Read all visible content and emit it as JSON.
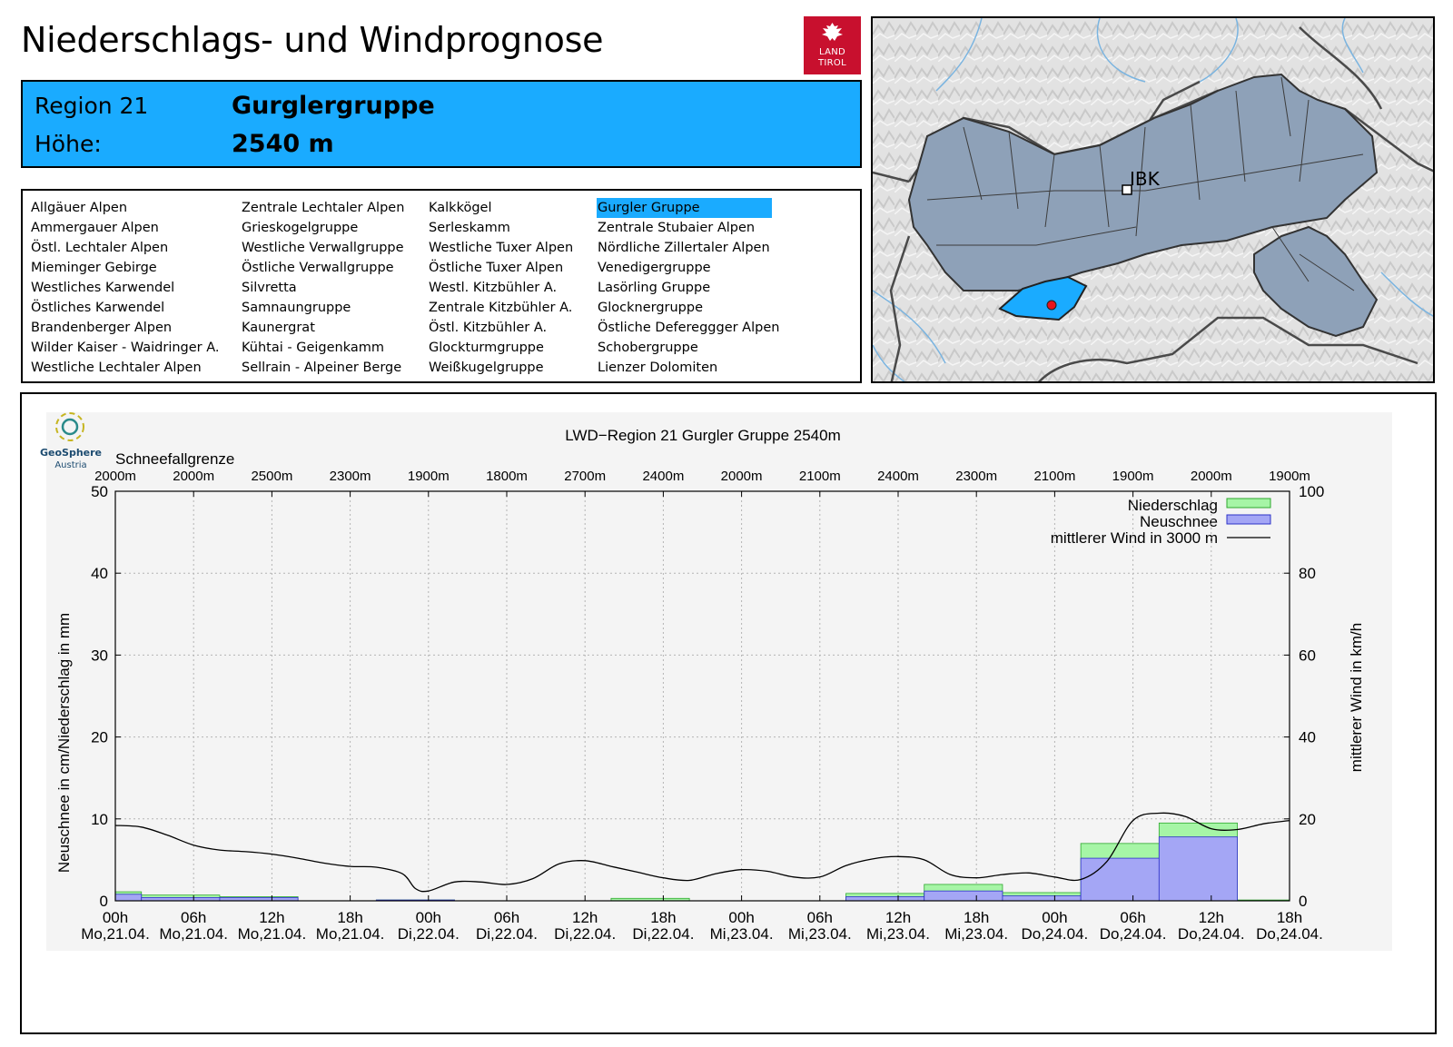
{
  "header": {
    "title": "Niederschlags- und Windprognose"
  },
  "logo": {
    "line1": "LAND",
    "line2": "TIROL",
    "color": "#c8102e"
  },
  "region": {
    "region_label": "Region 21",
    "region_name": "Gurglergruppe",
    "height_label": "Höhe:",
    "height_value": "2540 m",
    "highlight_color": "#1aabff"
  },
  "region_list": {
    "columns": [
      [
        "Allgäuer Alpen",
        "Ammergauer Alpen",
        "Östl. Lechtaler Alpen",
        "Mieminger Gebirge",
        "Westliches Karwendel",
        "Östliches Karwendel",
        "Brandenberger Alpen",
        "Wilder Kaiser - Waidringer A.",
        "Westliche Lechtaler Alpen"
      ],
      [
        "Zentrale Lechtaler Alpen",
        "Grieskogelgruppe",
        "Westliche Verwallgruppe",
        "Östliche Verwallgruppe",
        "Silvretta",
        "Samnaungruppe",
        "Kaunergrat",
        "Kühtai - Geigenkamm",
        "Sellrain - Alpeiner Berge"
      ],
      [
        "Kalkkögel",
        "Serleskamm",
        "Westliche Tuxer Alpen",
        "Östliche Tuxer Alpen",
        "Westl. Kitzbühler A.",
        "Zentrale Kitzbühler A.",
        "Östl. Kitzbühler A.",
        "Glockturmgruppe",
        "Weißkugelgruppe"
      ],
      [
        "Gurgler Gruppe",
        "Zentrale Stubaier Alpen",
        "Nördliche Zillertaler Alpen",
        "Venedigergruppe",
        "Lasörling Gruppe",
        "Glocknergruppe",
        "Östliche Defereggger Alpen",
        "Schobergruppe",
        "Lienzer Dolomiten"
      ]
    ],
    "selected": "Gurgler Gruppe"
  },
  "map": {
    "marker_label": "IBK",
    "region_fill": "#1aabff",
    "tirol_fill": "#8ea1b8",
    "point_color": "#e8141c"
  },
  "chart_logo": {
    "name": "GeoSphere",
    "sub": "Austria"
  },
  "chart_data": {
    "type": "bar",
    "title": "LWD−Region 21 Gurgler Gruppe 2540m",
    "snowline_label": "Schneefallgrenze",
    "snowline_values": [
      "2000m",
      "2000m",
      "2500m",
      "2300m",
      "1900m",
      "1800m",
      "2700m",
      "2400m",
      "2000m",
      "2100m",
      "2400m",
      "2300m",
      "2100m",
      "1900m",
      "2000m",
      "1900m"
    ],
    "ylabel": "Neuschnee in cm/Niederschlag in mm",
    "y2label": "mittlerer Wind in km/h",
    "ylim": [
      0,
      50
    ],
    "y2lim": [
      0,
      100
    ],
    "yticks": [
      0,
      10,
      20,
      30,
      40,
      50
    ],
    "y2ticks": [
      0,
      20,
      40,
      60,
      80,
      100
    ],
    "x_tick_hours": [
      "00h",
      "06h",
      "12h",
      "18h",
      "00h",
      "06h",
      "12h",
      "18h",
      "00h",
      "06h",
      "12h",
      "18h",
      "00h",
      "06h",
      "12h",
      "18h"
    ],
    "x_tick_days": [
      "Mo,21.04.",
      "Mo,21.04.",
      "Mo,21.04.",
      "Mo,21.04.",
      "Di,22.04.",
      "Di,22.04.",
      "Di,22.04.",
      "Di,22.04.",
      "Mi,23.04.",
      "Mi,23.04.",
      "Mi,23.04.",
      "Mi,23.04.",
      "Do,24.04.",
      "Do,24.04.",
      "Do,24.04.",
      "Do,24.04."
    ],
    "x_range_hours": [
      0,
      90
    ],
    "grid": true,
    "legend": [
      "Niederschlag",
      "Neuschnee",
      "mittlerer Wind in 3000 m"
    ],
    "legend_position": "top-right",
    "colors": {
      "niederschlag": "#a6f5a6",
      "niederschlag_edge": "#2ea82e",
      "neuschnee": "#a4a6f5",
      "neuschnee_edge": "#2d32c8",
      "wind": "#000000",
      "plot_bg": "#f4f4f4"
    },
    "series": [
      {
        "name": "Niederschlag",
        "bars": [
          {
            "start": 0,
            "end": 2,
            "value": 1.1
          },
          {
            "start": 2,
            "end": 8,
            "value": 0.7
          },
          {
            "start": 8,
            "end": 14,
            "value": 0.5
          },
          {
            "start": 20,
            "end": 26,
            "value": 0.1
          },
          {
            "start": 38,
            "end": 44,
            "value": 0.3
          },
          {
            "start": 56,
            "end": 62,
            "value": 0.9
          },
          {
            "start": 62,
            "end": 68,
            "value": 2.0
          },
          {
            "start": 68,
            "end": 74,
            "value": 1.0
          },
          {
            "start": 74,
            "end": 80,
            "value": 7.0
          },
          {
            "start": 80,
            "end": 86,
            "value": 9.5
          },
          {
            "start": 86,
            "end": 90,
            "value": 0.1
          }
        ]
      },
      {
        "name": "Neuschnee",
        "bars": [
          {
            "start": 0,
            "end": 2,
            "value": 0.8
          },
          {
            "start": 2,
            "end": 8,
            "value": 0.4
          },
          {
            "start": 8,
            "end": 14,
            "value": 0.4
          },
          {
            "start": 20,
            "end": 26,
            "value": 0.1
          },
          {
            "start": 56,
            "end": 62,
            "value": 0.5
          },
          {
            "start": 62,
            "end": 68,
            "value": 1.2
          },
          {
            "start": 68,
            "end": 74,
            "value": 0.6
          },
          {
            "start": 74,
            "end": 80,
            "value": 5.2
          },
          {
            "start": 80,
            "end": 86,
            "value": 7.8
          }
        ]
      },
      {
        "name": "mittlerer Wind in 3000 m",
        "x": [
          0,
          2,
          4,
          6,
          8,
          10,
          12,
          14,
          16,
          18,
          20,
          22,
          23,
          24,
          26,
          28,
          30,
          32,
          34,
          36,
          38,
          40,
          42,
          44,
          46,
          48,
          50,
          52,
          54,
          56,
          58,
          60,
          62,
          64,
          66,
          68,
          70,
          72,
          74,
          76,
          78,
          80,
          82,
          84,
          86,
          88,
          90
        ],
        "values": [
          18.4,
          18.0,
          16.0,
          13.6,
          12.4,
          12.0,
          11.4,
          10.4,
          9.2,
          8.4,
          8.2,
          6.6,
          3.0,
          2.4,
          4.6,
          4.6,
          4.0,
          5.4,
          9.0,
          9.8,
          8.4,
          7.0,
          5.6,
          5.0,
          6.6,
          7.6,
          7.2,
          5.8,
          5.8,
          8.6,
          10.2,
          10.8,
          10.0,
          6.4,
          5.6,
          6.4,
          6.8,
          5.8,
          5.2,
          9.6,
          19.6,
          21.4,
          20.6,
          17.6,
          17.4,
          18.8,
          19.6
        ]
      }
    ]
  }
}
